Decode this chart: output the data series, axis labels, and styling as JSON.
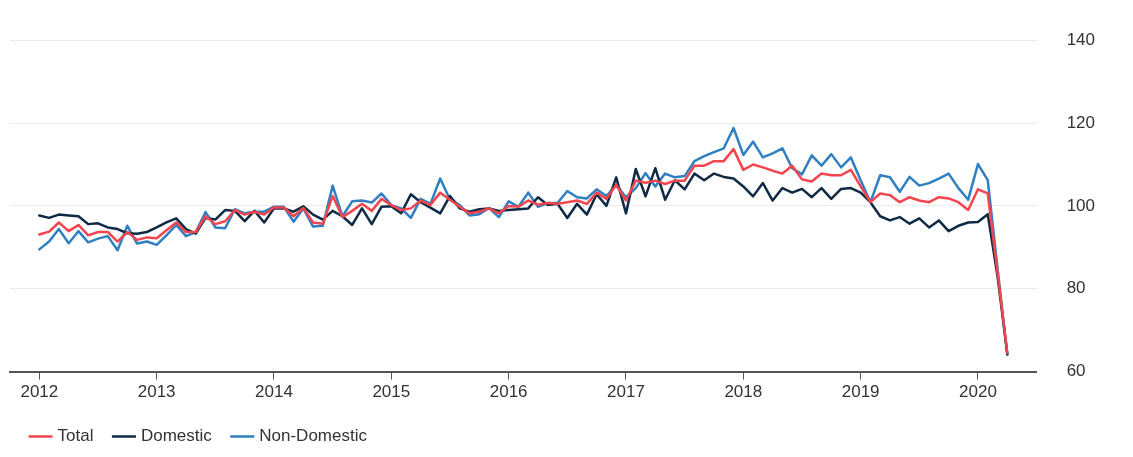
{
  "chart_data": {
    "type": "line",
    "x": [
      "2012-01",
      "2012-02",
      "2012-03",
      "2012-04",
      "2012-05",
      "2012-06",
      "2012-07",
      "2012-08",
      "2012-09",
      "2012-10",
      "2012-11",
      "2012-12",
      "2013-01",
      "2013-02",
      "2013-03",
      "2013-04",
      "2013-05",
      "2013-06",
      "2013-07",
      "2013-08",
      "2013-09",
      "2013-10",
      "2013-11",
      "2013-12",
      "2014-01",
      "2014-02",
      "2014-03",
      "2014-04",
      "2014-05",
      "2014-06",
      "2014-07",
      "2014-08",
      "2014-09",
      "2014-10",
      "2014-11",
      "2014-12",
      "2015-01",
      "2015-02",
      "2015-03",
      "2015-04",
      "2015-05",
      "2015-06",
      "2015-07",
      "2015-08",
      "2015-09",
      "2015-10",
      "2015-11",
      "2015-12",
      "2016-01",
      "2016-02",
      "2016-03",
      "2016-04",
      "2016-05",
      "2016-06",
      "2016-07",
      "2016-08",
      "2016-09",
      "2016-10",
      "2016-11",
      "2016-12",
      "2017-01",
      "2017-02",
      "2017-03",
      "2017-04",
      "2017-05",
      "2017-06",
      "2017-07",
      "2017-08",
      "2017-09",
      "2017-10",
      "2017-11",
      "2017-12",
      "2018-01",
      "2018-02",
      "2018-03",
      "2018-04",
      "2018-05",
      "2018-06",
      "2018-07",
      "2018-08",
      "2018-09",
      "2018-10",
      "2018-11",
      "2018-12",
      "2019-01",
      "2019-02",
      "2019-03",
      "2019-04",
      "2019-05",
      "2019-06",
      "2019-07",
      "2019-08",
      "2019-09",
      "2019-10",
      "2019-11",
      "2019-12",
      "2020-01",
      "2020-02",
      "2020-03",
      "2020-04"
    ],
    "series": [
      {
        "name": "Total",
        "color": "#f4454f",
        "values": [
          93.1,
          93.8,
          96.0,
          93.9,
          95.4,
          92.9,
          93.7,
          93.7,
          91.4,
          93.7,
          91.8,
          92.4,
          92.2,
          94.1,
          96.0,
          93.7,
          93.7,
          97.5,
          95.6,
          96.3,
          99.0,
          97.9,
          98.6,
          97.9,
          99.6,
          99.6,
          97.5,
          99.5,
          96.0,
          95.7,
          102.4,
          97.3,
          98.8,
          100.5,
          98.8,
          101.7,
          100.2,
          99.0,
          99.4,
          101.3,
          100.2,
          103.2,
          101.5,
          99.8,
          98.2,
          98.6,
          99.4,
          98.2,
          100.0,
          99.8,
          101.3,
          100.3,
          100.7,
          100.5,
          100.9,
          101.3,
          100.5,
          103.2,
          101.7,
          105.1,
          101.3,
          106.1,
          105.6,
          106.1,
          105.3,
          106.1,
          106.1,
          109.7,
          109.7,
          110.8,
          110.8,
          113.7,
          108.7,
          110.0,
          109.3,
          108.5,
          107.8,
          109.7,
          106.4,
          105.9,
          107.8,
          107.4,
          107.4,
          108.7,
          104.7,
          100.9,
          103.0,
          102.6,
          100.9,
          102.1,
          101.3,
          100.9,
          102.1,
          101.8,
          100.9,
          99.0,
          104.0,
          103.0,
          84,
          64.5
        ]
      },
      {
        "name": "Domestic",
        "color": "#0f2a45",
        "values": [
          97.7,
          97.1,
          97.9,
          97.7,
          97.5,
          95.6,
          95.8,
          94.8,
          94.4,
          93.4,
          93.3,
          93.7,
          94.8,
          96.0,
          97.0,
          94.4,
          93.3,
          97.1,
          96.7,
          99.0,
          98.8,
          96.3,
          98.8,
          96.0,
          99.4,
          99.4,
          98.6,
          99.9,
          97.9,
          96.7,
          98.8,
          97.5,
          95.4,
          99.4,
          95.6,
          99.8,
          99.9,
          98.2,
          102.8,
          100.9,
          99.6,
          98.2,
          102.4,
          99.4,
          98.6,
          99.2,
          99.4,
          98.8,
          99.0,
          99.2,
          99.4,
          102.1,
          100.2,
          100.5,
          97.1,
          100.5,
          97.9,
          102.8,
          100.0,
          106.9,
          98.2,
          108.9,
          102.3,
          109.1,
          101.5,
          106.2,
          104.0,
          107.8,
          106.2,
          107.8,
          107.0,
          106.6,
          104.7,
          102.3,
          105.5,
          101.3,
          104.3,
          103.2,
          104.1,
          102.1,
          104.3,
          101.7,
          104.1,
          104.3,
          103.2,
          100.9,
          97.5,
          96.5,
          97.3,
          95.7,
          97.0,
          94.8,
          96.5,
          93.9,
          95.2,
          96.0,
          96.1,
          98.0,
          83,
          64.3
        ]
      },
      {
        "name": "Non-Domestic",
        "color": "#2f7fc1",
        "values": [
          89.5,
          91.4,
          94.4,
          91.0,
          93.9,
          91.2,
          92.1,
          92.7,
          89.3,
          95.2,
          90.9,
          91.4,
          90.6,
          92.9,
          95.4,
          92.7,
          93.7,
          98.5,
          94.8,
          94.6,
          99.2,
          98.2,
          98.6,
          98.6,
          99.8,
          99.8,
          96.2,
          99.4,
          95.0,
          95.2,
          104.9,
          97.5,
          101.1,
          101.3,
          100.8,
          103.0,
          100.2,
          99.4,
          97.1,
          101.7,
          100.5,
          106.6,
          101.5,
          100.2,
          97.7,
          98.0,
          99.5,
          97.3,
          101.1,
          99.8,
          103.2,
          99.8,
          100.7,
          100.7,
          103.6,
          102.1,
          101.8,
          104.0,
          102.4,
          105.1,
          102.1,
          104.3,
          107.9,
          104.7,
          107.8,
          106.9,
          107.2,
          110.8,
          112.0,
          113.0,
          113.9,
          118.8,
          112.3,
          115.5,
          111.7,
          112.7,
          113.9,
          109.1,
          107.6,
          112.2,
          109.7,
          112.5,
          109.3,
          111.7,
          106.2,
          100.9,
          107.4,
          106.9,
          103.4,
          107.0,
          104.9,
          105.5,
          106.6,
          107.8,
          104.3,
          101.5,
          110.1,
          106.2,
          85,
          64.0
        ]
      }
    ],
    "xlim": [
      "2011-10",
      "2020-07"
    ],
    "xticks": [
      "2012",
      "2013",
      "2014",
      "2015",
      "2016",
      "2017",
      "2018",
      "2019",
      "2020"
    ],
    "ylim": [
      60,
      140
    ],
    "yticks": [
      60,
      80,
      100,
      120,
      140
    ],
    "grid": "y",
    "legend": "bottom left",
    "marker": "none",
    "line_style": "solid"
  }
}
